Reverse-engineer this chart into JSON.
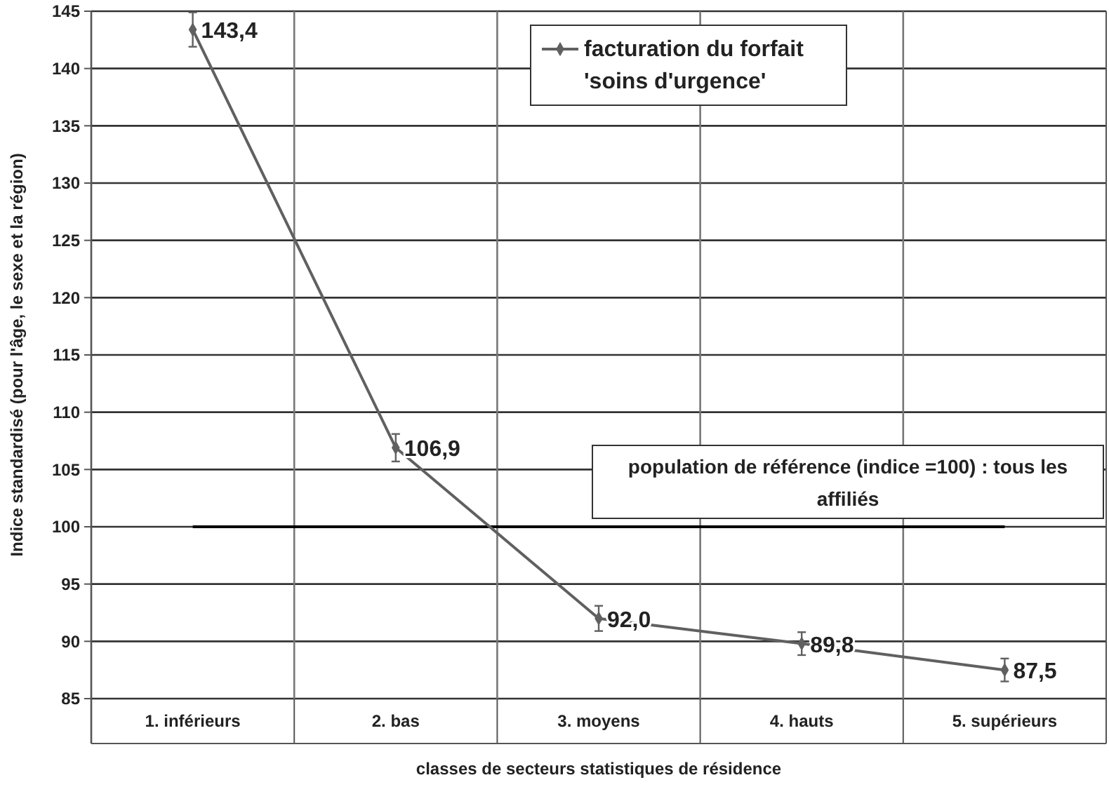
{
  "chart_data": {
    "type": "line",
    "categories": [
      "1. inférieurs",
      "2. bas",
      "3. moyens",
      "4. hauts",
      "5. supérieurs"
    ],
    "series": [
      {
        "name": "facturation du forfait 'soins d'urgence'",
        "color": "#606060",
        "values": [
          143.4,
          106.9,
          92.0,
          89.8,
          87.5
        ],
        "errors": [
          1.5,
          1.2,
          1.1,
          1.0,
          1.0
        ],
        "value_labels": [
          "143,4",
          "106,9",
          "92,0",
          "89,8",
          "87,5"
        ]
      }
    ],
    "ylim": [
      85,
      145
    ],
    "yticks": [
      85,
      90,
      95,
      100,
      105,
      110,
      115,
      120,
      125,
      130,
      135,
      140,
      145
    ],
    "ylabel": "Indice standardisé (pour l'âge, le sexe et la région)",
    "xlabel": "classes de secteurs statistiques de résidence",
    "ref_lines": [
      {
        "axis": "y",
        "value": 100,
        "label": "population de référence (indice =100) : tous les affiliés",
        "color": "#000000"
      }
    ],
    "grid": true,
    "legend": "top right",
    "marker": "diamond",
    "line_style": "solid"
  }
}
